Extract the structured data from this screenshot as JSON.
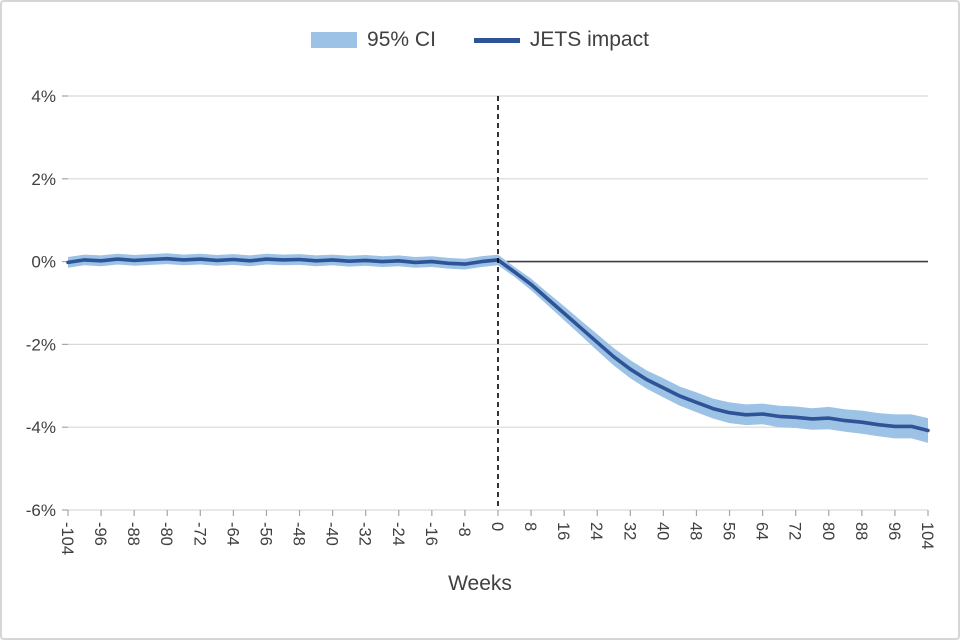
{
  "chart_data": {
    "type": "line",
    "title": "",
    "xlabel": "Weeks",
    "ylabel": "",
    "legend_position": "top",
    "grid": "horizontal",
    "xlim": [
      -104,
      104
    ],
    "ylim": [
      -6,
      4
    ],
    "intervention_x": 0,
    "x_ticks": [
      -104,
      -96,
      -88,
      -80,
      -72,
      -64,
      -56,
      -48,
      -40,
      -32,
      -24,
      -16,
      -8,
      0,
      8,
      16,
      24,
      32,
      40,
      48,
      56,
      64,
      72,
      80,
      88,
      96,
      104
    ],
    "x_tick_labels": [
      "-104",
      "-96",
      "-88",
      "-80",
      "-72",
      "-64",
      "-56",
      "-48",
      "-40",
      "-32",
      "-24",
      "-16",
      "-8",
      "0",
      "8",
      "16",
      "24",
      "32",
      "40",
      "48",
      "56",
      "64",
      "72",
      "80",
      "88",
      "96",
      "104"
    ],
    "y_ticks": [
      4,
      2,
      0,
      -2,
      -4,
      -6
    ],
    "y_tick_labels": [
      "4%",
      "2%",
      "0%",
      "-2%",
      "-4%",
      "-6%"
    ],
    "x": [
      -104,
      -100,
      -96,
      -92,
      -88,
      -84,
      -80,
      -76,
      -72,
      -68,
      -64,
      -60,
      -56,
      -52,
      -48,
      -44,
      -40,
      -36,
      -32,
      -28,
      -24,
      -20,
      -16,
      -12,
      -8,
      -4,
      0,
      4,
      8,
      12,
      16,
      20,
      24,
      28,
      32,
      36,
      40,
      44,
      48,
      52,
      56,
      60,
      64,
      68,
      72,
      76,
      80,
      84,
      88,
      92,
      96,
      100,
      104
    ],
    "series": [
      {
        "name": "JETS impact",
        "values": [
          -0.02,
          0.04,
          0.02,
          0.06,
          0.03,
          0.05,
          0.07,
          0.04,
          0.06,
          0.03,
          0.05,
          0.02,
          0.06,
          0.04,
          0.05,
          0.02,
          0.04,
          0.01,
          0.03,
          0.0,
          0.02,
          -0.02,
          0.0,
          -0.04,
          -0.06,
          0.0,
          0.04,
          -0.25,
          -0.55,
          -0.9,
          -1.25,
          -1.6,
          -1.95,
          -2.3,
          -2.6,
          -2.85,
          -3.05,
          -3.25,
          -3.4,
          -3.55,
          -3.65,
          -3.7,
          -3.68,
          -3.74,
          -3.76,
          -3.8,
          -3.78,
          -3.84,
          -3.88,
          -3.94,
          -3.98,
          -3.98,
          -4.08
        ]
      }
    ],
    "ci": {
      "name": "95% CI",
      "half_width": [
        0.13,
        0.13,
        0.13,
        0.13,
        0.13,
        0.13,
        0.13,
        0.13,
        0.13,
        0.13,
        0.13,
        0.13,
        0.13,
        0.13,
        0.13,
        0.13,
        0.13,
        0.13,
        0.13,
        0.13,
        0.13,
        0.13,
        0.13,
        0.13,
        0.13,
        0.13,
        0.13,
        0.12,
        0.14,
        0.15,
        0.17,
        0.18,
        0.2,
        0.21,
        0.22,
        0.22,
        0.23,
        0.23,
        0.24,
        0.24,
        0.25,
        0.25,
        0.25,
        0.26,
        0.26,
        0.26,
        0.27,
        0.27,
        0.28,
        0.28,
        0.29,
        0.29,
        0.3
      ]
    },
    "colors": {
      "ci_band": "#9CC2E5",
      "impact_line": "#2E5396",
      "gridline": "#D9D9D9",
      "zero_line": "#404040",
      "tick": "#A6A6A6",
      "axis_text": "#404040",
      "dashed_line": "#000000"
    }
  }
}
